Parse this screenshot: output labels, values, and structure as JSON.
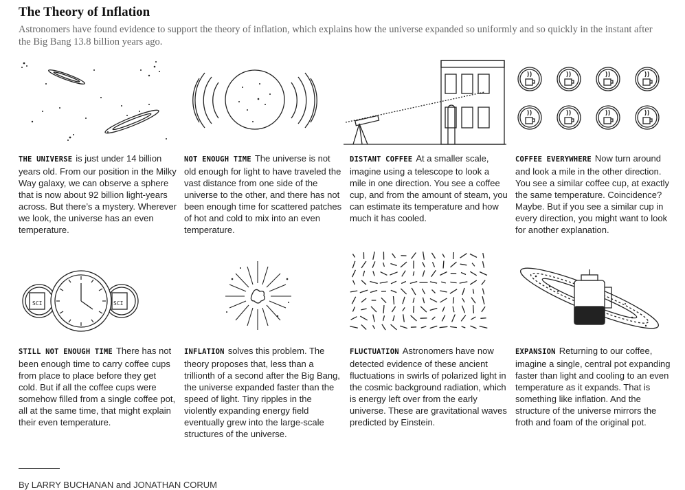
{
  "header": {
    "title": "The Theory of Inflation",
    "subtitle": "Astronomers have found evidence to support the theory of inflation, which explains how the universe expanded so uniformly and so quickly in the instant after the Big Bang 13.8 billion years ago."
  },
  "panels": [
    {
      "label": "THE UNIVERSE",
      "text": "is just under 14 billion years old. From our position in the Milky Way galaxy, we can observe a sphere that is now about 92 billion light-years across. But there’s a mystery. Wherever we look, the universe has an even temperature.",
      "icon": "galaxies-icon"
    },
    {
      "label": "NOT ENOUGH TIME",
      "text": "The universe is not old enough for light to have traveled the vast distance from one side of the universe to the other, and there has not been enough time for scattered patches of hot and cold to mix into an even temperature.",
      "icon": "observable-universe-icon"
    },
    {
      "label": "DISTANT COFFEE",
      "text": "At a smaller scale, imagine using a telescope to look a mile in one direction. You see a coffee cup, and from the amount of steam, you can estimate its temperature and how much it has cooled.",
      "icon": "telescope-building-icon"
    },
    {
      "label": "COFFEE EVERYWHERE",
      "text": "Now turn around and look a mile in the other direction. You see a similar coffee cup, at exactly the same temperature. Coincidence? Maybe. But if you see a similar cup in every direction, you might want to look for another explanation.",
      "icon": "coffee-cups-grid-icon"
    },
    {
      "label": "STILL NOT ENOUGH TIME",
      "text": "There has not been enough time to carry coffee cups from place to place before they get cold. But if all the coffee cups were somehow filled from a single coffee pot, all at the same time, that might explain their even temperature.",
      "icon": "clock-cups-icon",
      "cup_text": "SCI"
    },
    {
      "label": "INFLATION",
      "text": "solves this problem. The theory proposes that, less than a trillionth of a second after the Big Bang, the universe expanded faster than the speed of light. Tiny ripples in the violently expanding energy field eventually grew into the large-scale structures of the universe.",
      "icon": "big-bang-icon"
    },
    {
      "label": "FLUCTUATION",
      "text": "Astronomers have now detected evidence of these ancient fluctuations in swirls of polarized light in the cosmic background radiation, which is energy left over from the early universe. These are gravitational waves predicted by Einstein.",
      "icon": "polarization-field-icon"
    },
    {
      "label": "EXPANSION",
      "text": "Returning to our coffee, imagine a single, central pot expanding faster than light and cooling to an even temperature as it expands. That is something like inflation. And the structure of the universe mirrors the froth and foam of the original pot.",
      "icon": "coffee-pot-galaxy-icon"
    }
  ],
  "footer": {
    "byline": "By LARRY BUCHANAN and JONATHAN CORUM"
  }
}
